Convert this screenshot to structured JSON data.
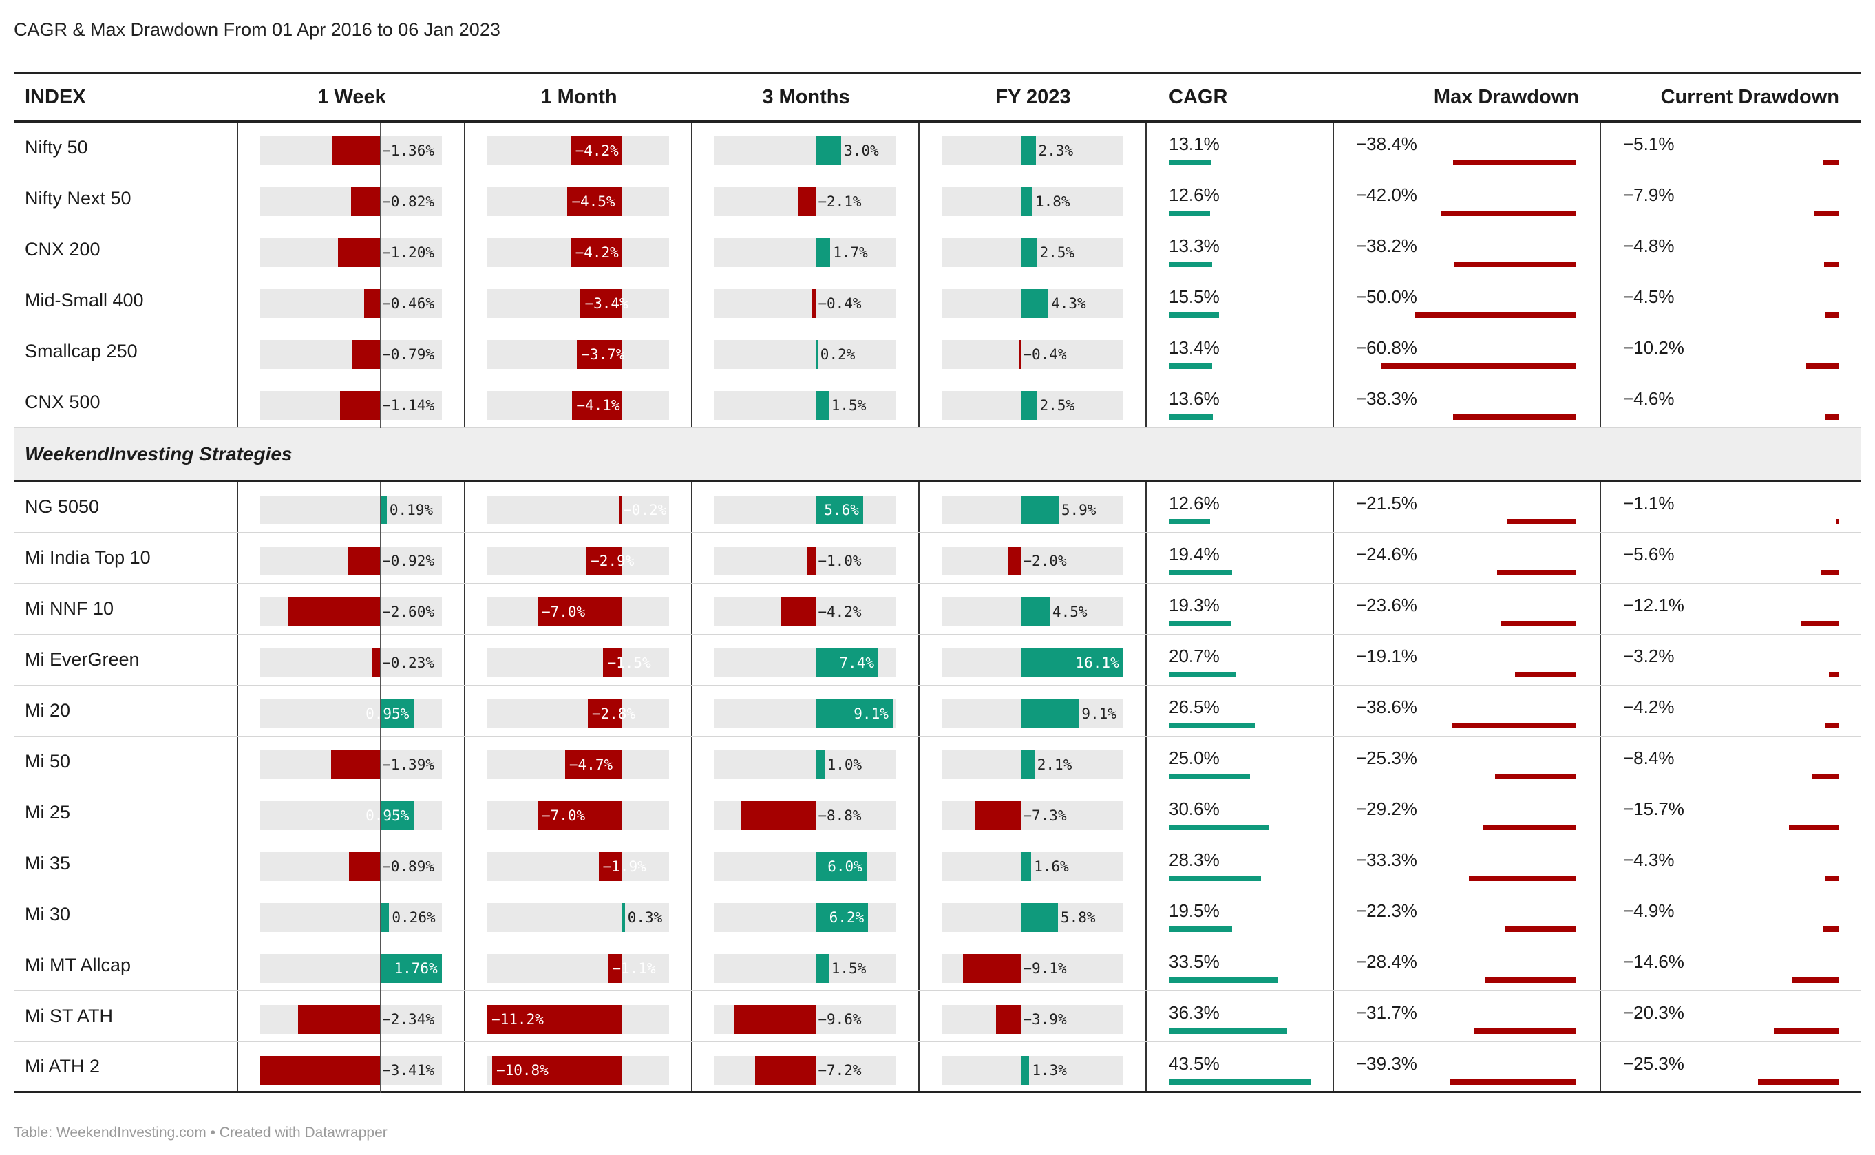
{
  "title": "CAGR & Max Drawdown From 01 Apr 2016 to 06 Jan 2023",
  "footer": "Table: WeekendInvesting.com • Created with Datawrapper",
  "colors": {
    "negative": "#a50000",
    "positive": "#0f9a7c",
    "track": "#e9e9e9"
  },
  "chart_data": {
    "type": "table",
    "columns": [
      "INDEX",
      "1 Week",
      "1 Month",
      "3 Months",
      "FY 2023",
      "CAGR",
      "Max Drawdown",
      "Current Drawdown"
    ],
    "groups": [
      {
        "name": "",
        "rows": [
          {
            "name": "Nifty 50",
            "week": -1.36,
            "month": -4.2,
            "months3": 3.0,
            "fy": 2.3,
            "cagr": 13.1,
            "maxdd": -38.4,
            "curdd": -5.1
          },
          {
            "name": "Nifty Next 50",
            "week": -0.82,
            "month": -4.5,
            "months3": -2.1,
            "fy": 1.8,
            "cagr": 12.6,
            "maxdd": -42.0,
            "curdd": -7.9
          },
          {
            "name": "CNX 200",
            "week": -1.2,
            "month": -4.2,
            "months3": 1.7,
            "fy": 2.5,
            "cagr": 13.3,
            "maxdd": -38.2,
            "curdd": -4.8
          },
          {
            "name": "Mid-Small 400",
            "week": -0.46,
            "month": -3.4,
            "months3": -0.4,
            "fy": 4.3,
            "cagr": 15.5,
            "maxdd": -50.0,
            "curdd": -4.5
          },
          {
            "name": "Smallcap 250",
            "week": -0.79,
            "month": -3.7,
            "months3": 0.2,
            "fy": -0.4,
            "cagr": 13.4,
            "maxdd": -60.8,
            "curdd": -10.2
          },
          {
            "name": "CNX 500",
            "week": -1.14,
            "month": -4.1,
            "months3": 1.5,
            "fy": 2.5,
            "cagr": 13.6,
            "maxdd": -38.3,
            "curdd": -4.6
          }
        ]
      },
      {
        "name": "WeekendInvesting Strategies",
        "rows": [
          {
            "name": "NG 5050",
            "week": 0.19,
            "month": -0.2,
            "months3": 5.6,
            "fy": 5.9,
            "cagr": 12.6,
            "maxdd": -21.5,
            "curdd": -1.1
          },
          {
            "name": "Mi India Top 10",
            "week": -0.92,
            "month": -2.9,
            "months3": -1.0,
            "fy": -2.0,
            "cagr": 19.4,
            "maxdd": -24.6,
            "curdd": -5.6
          },
          {
            "name": "Mi NNF 10",
            "week": -2.6,
            "month": -7.0,
            "months3": -4.2,
            "fy": 4.5,
            "cagr": 19.3,
            "maxdd": -23.6,
            "curdd": -12.1
          },
          {
            "name": "Mi EverGreen",
            "week": -0.23,
            "month": -1.5,
            "months3": 7.4,
            "fy": 16.1,
            "cagr": 20.7,
            "maxdd": -19.1,
            "curdd": -3.2
          },
          {
            "name": "Mi 20",
            "week": 0.95,
            "month": -2.8,
            "months3": 9.1,
            "fy": 9.1,
            "cagr": 26.5,
            "maxdd": -38.6,
            "curdd": -4.2
          },
          {
            "name": "Mi 50",
            "week": -1.39,
            "month": -4.7,
            "months3": 1.0,
            "fy": 2.1,
            "cagr": 25.0,
            "maxdd": -25.3,
            "curdd": -8.4
          },
          {
            "name": "Mi 25",
            "week": 0.95,
            "month": -7.0,
            "months3": -8.8,
            "fy": -7.3,
            "cagr": 30.6,
            "maxdd": -29.2,
            "curdd": -15.7
          },
          {
            "name": "Mi 35",
            "week": -0.89,
            "month": -1.9,
            "months3": 6.0,
            "fy": 1.6,
            "cagr": 28.3,
            "maxdd": -33.3,
            "curdd": -4.3
          },
          {
            "name": "Mi 30",
            "week": 0.26,
            "month": 0.3,
            "months3": 6.2,
            "fy": 5.8,
            "cagr": 19.5,
            "maxdd": -22.3,
            "curdd": -4.9
          },
          {
            "name": "Mi MT Allcap",
            "week": 1.76,
            "month": -1.1,
            "months3": 1.5,
            "fy": -9.1,
            "cagr": 33.5,
            "maxdd": -28.4,
            "curdd": -14.6
          },
          {
            "name": "Mi ST ATH",
            "week": -2.34,
            "month": -11.2,
            "months3": -9.6,
            "fy": -3.9,
            "cagr": 36.3,
            "maxdd": -31.7,
            "curdd": -20.3
          },
          {
            "name": "Mi ATH 2",
            "week": -3.41,
            "month": -10.8,
            "months3": -7.2,
            "fy": 1.3,
            "cagr": 43.5,
            "maxdd": -39.3,
            "curdd": -25.3
          }
        ]
      }
    ]
  }
}
